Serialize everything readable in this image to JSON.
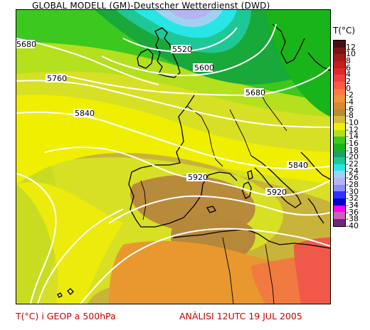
{
  "header": {
    "title": "GLOBAL MODELL (GM)-Deutscher Wetterdienst (DWD)"
  },
  "legend": {
    "title": "T(°C)",
    "entries": [
      {
        "label": "12",
        "color": "#4a0e12"
      },
      {
        "label": "10",
        "color": "#7a1515"
      },
      {
        "label": "8",
        "color": "#a01a1a"
      },
      {
        "label": "6",
        "color": "#c41e1e"
      },
      {
        "label": "4",
        "color": "#e02a2a"
      },
      {
        "label": "2",
        "color": "#f04040"
      },
      {
        "label": "0",
        "color": "#ff5a40"
      },
      {
        "label": "-2",
        "color": "#ff7a45"
      },
      {
        "label": "-4",
        "color": "#f2913e"
      },
      {
        "label": "-6",
        "color": "#d98a2e"
      },
      {
        "label": "-8",
        "color": "#b98a38"
      },
      {
        "label": "-10",
        "color": "#d2bc3a"
      },
      {
        "label": "-12",
        "color": "#f0f000"
      },
      {
        "label": "-14",
        "color": "#b4e01e"
      },
      {
        "label": "-16",
        "color": "#3cc81e"
      },
      {
        "label": "-18",
        "color": "#19b419"
      },
      {
        "label": "-20",
        "color": "#1ea064"
      },
      {
        "label": "-22",
        "color": "#1ec896"
      },
      {
        "label": "-24",
        "color": "#28e6e6"
      },
      {
        "label": "-26",
        "color": "#a0d2f0"
      },
      {
        "label": "-28",
        "color": "#b4b4f0"
      },
      {
        "label": "-30",
        "color": "#8c8cff"
      },
      {
        "label": "-32",
        "color": "#3232ff"
      },
      {
        "label": "-34",
        "color": "#0000c8"
      },
      {
        "label": "-36",
        "color": "#ff00ff"
      },
      {
        "label": "-38",
        "color": "#c864b4"
      },
      {
        "label": "-40",
        "color": "#6e2878"
      }
    ]
  },
  "contours": [
    {
      "label": "5520"
    },
    {
      "label": "5600"
    },
    {
      "label": "5680"
    },
    {
      "label": "5680"
    },
    {
      "label": "5760"
    },
    {
      "label": "5840"
    },
    {
      "label": "5840"
    },
    {
      "label": "5920"
    },
    {
      "label": "5920"
    }
  ],
  "footer": {
    "left": "T(°C) i GEOP a 500hPa",
    "right": "ANÀLISI 12UTC 19 JUL 2005"
  }
}
